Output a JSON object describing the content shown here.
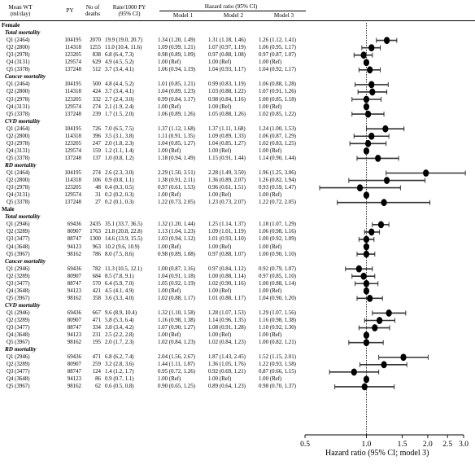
{
  "header": {
    "col_wt": [
      "Mean WT",
      "(ml/day)"
    ],
    "col_py": "PY",
    "col_deaths": [
      "No of",
      "deaths"
    ],
    "col_rate": [
      "Rate/1000 PY",
      "(95% CI)"
    ],
    "col_hr": "Hazard ratio (95% CI)",
    "col_m1": "Model 1",
    "col_m2": "Model 2",
    "col_m3": "Model 3"
  },
  "sections": [
    {
      "label": "Female",
      "groups": [
        {
          "label": "Total mortality",
          "rows": [
            {
              "q": "Q1 (2464)",
              "py": "104195",
              "d": "2070",
              "rate": "19.9 (19.0, 20.7)",
              "m1": "1.34 (1.20, 1.49)",
              "m2": "1.31 (1.18, 1.46)",
              "m3": "1.26 (1.12, 1.41)",
              "hr": 1.26,
              "lo": 1.12,
              "hi": 1.41
            },
            {
              "q": "Q2 (2800)",
              "py": "114318",
              "d": "1255",
              "rate": "11.0 (10.4, 11.6)",
              "m1": "1.09 (0.99, 1.21)",
              "m2": "1.07 (0.97, 1.19)",
              "m3": "1.06 (0.95, 1.17)",
              "hr": 1.06,
              "lo": 0.95,
              "hi": 1.17
            },
            {
              "q": "Q3 (2978)",
              "py": "123205",
              "d": "838",
              "rate": "6.8 (6.4, 7.3)",
              "m1": "0.98 (0.89, 1.09)",
              "m2": "0.97 (0.88, 1.08)",
              "m3": "0.97 (0.87, 1.07)",
              "hr": 0.97,
              "lo": 0.87,
              "hi": 1.07
            },
            {
              "q": "Q4 (3131)",
              "py": "129574",
              "d": "629",
              "rate": "4.9 (4.5, 5.2)",
              "m1": "1.00 (Ref)",
              "m2": "1.00 (Ref)",
              "m3": "1.00 (Ref)",
              "hr": 1.0,
              "lo": 1.0,
              "hi": 1.0
            },
            {
              "q": "Q5 (3378)",
              "py": "137248",
              "d": "512",
              "rate": "3.7 (3.4, 4.1)",
              "m1": "1.06 (0.94, 1.19)",
              "m2": "1.04 (0.93, 1.17)",
              "m3": "1.04 (0.92, 1.17)",
              "hr": 1.04,
              "lo": 0.92,
              "hi": 1.17
            }
          ]
        },
        {
          "label": "Cancer mortality",
          "rows": [
            {
              "q": "Q1 (2464)",
              "py": "104195",
              "d": "500",
              "rate": "4.8 (4.4, 5.2)",
              "m1": "1.01 (0.85, 1.21)",
              "m2": "0.99 (0.83, 1.19)",
              "m3": "1.06 (0.88, 1.28)",
              "hr": 1.06,
              "lo": 0.88,
              "hi": 1.28
            },
            {
              "q": "Q2 (2800)",
              "py": "114318",
              "d": "424",
              "rate": "3.7 (3.4, 4.1)",
              "m1": "1.04 (0.89, 1.23)",
              "m2": "1.03 (0.88, 1.22)",
              "m3": "1.07 (0.91, 1.26)",
              "hr": 1.07,
              "lo": 0.91,
              "hi": 1.26
            },
            {
              "q": "Q3 (2978)",
              "py": "123205",
              "d": "332",
              "rate": "2.7 (2.4, 3.0)",
              "m1": "0.99 (0.84, 1.17)",
              "m2": "0.98 (0.84, 1.16)",
              "m3": "1.00 (0.85, 1.18)",
              "hr": 1.0,
              "lo": 0.85,
              "hi": 1.18
            },
            {
              "q": "Q4 (3131)",
              "py": "129574",
              "d": "274",
              "rate": "2.1 (1.9, 2.4)",
              "m1": "1.00 (Ref)",
              "m2": "1.00 (Ref)",
              "m3": "1.00 (Ref)",
              "hr": 1.0,
              "lo": 1.0,
              "hi": 1.0
            },
            {
              "q": "Q5 (3378)",
              "py": "137248",
              "d": "239",
              "rate": "1.7 (1.5, 2.0)",
              "m1": "1.06 (0.89, 1.26)",
              "m2": "1.05 (0.88, 1.26)",
              "m3": "1.02 (0.85, 1.22)",
              "hr": 1.02,
              "lo": 0.85,
              "hi": 1.22
            }
          ]
        },
        {
          "label": "CVD mortality",
          "rows": [
            {
              "q": "Q1 (2464)",
              "py": "104195",
              "d": "726",
              "rate": "7.0 (6.5, 7.5)",
              "m1": "1.37 (1.12, 1.68)",
              "m2": "1.37 (1.11, 1.68)",
              "m3": "1.24 (1.00, 1.53)",
              "hr": 1.24,
              "lo": 1.0,
              "hi": 1.53
            },
            {
              "q": "Q2 (2800)",
              "py": "114318",
              "d": "396",
              "rate": "3.5 (3.1, 3.8)",
              "m1": "1.11 (0.91, 1.35)",
              "m2": "1.09 (0.89, 1.33)",
              "m3": "1.06 (0.87, 1.29)",
              "hr": 1.06,
              "lo": 0.87,
              "hi": 1.29
            },
            {
              "q": "Q3 (2978)",
              "py": "123205",
              "d": "247",
              "rate": "2.0 (1.8, 2.3)",
              "m1": "1.04 (0.85, 1.27)",
              "m2": "1.04 (0.85, 1.27)",
              "m3": "1.02 (0.83, 1.25)",
              "hr": 1.02,
              "lo": 0.83,
              "hi": 1.25
            },
            {
              "q": "Q4 (3131)",
              "py": "129574",
              "d": "159",
              "rate": "1.2 (1.1, 1.4)",
              "m1": "1.00 (Ref)",
              "m2": "1.00 (Ref)",
              "m3": "1.00 (Ref)",
              "hr": 1.0,
              "lo": 1.0,
              "hi": 1.0
            },
            {
              "q": "Q5 (3378)",
              "py": "137248",
              "d": "137",
              "rate": "1.0 (0.8, 1.2)",
              "m1": "1.18 (0.94, 1.49)",
              "m2": "1.15 (0.91, 1.44)",
              "m3": "1.14 (0.90, 1.44)",
              "hr": 1.14,
              "lo": 0.9,
              "hi": 1.44
            }
          ]
        },
        {
          "label": "RD mortality",
          "rows": [
            {
              "q": "Q1 (2464)",
              "py": "104195",
              "d": "274",
              "rate": "2.6 (2.3, 3.0)",
              "m1": "2.29 (1.50, 3.51)",
              "m2": "2.28 (1.49, 3.50)",
              "m3": "1.96 (1.25, 3.06)",
              "hr": 1.96,
              "lo": 1.25,
              "hi": 3.06
            },
            {
              "q": "Q2 (2800)",
              "py": "114318",
              "d": "106",
              "rate": "0.9 (0.8, 1.1)",
              "m1": "1.38 (0.91, 2.11)",
              "m2": "1.36 (0.89, 2.07)",
              "m3": "1.26 (0.82, 1.94)",
              "hr": 1.26,
              "lo": 0.82,
              "hi": 1.94
            },
            {
              "q": "Q3 (2978)",
              "py": "123205",
              "d": "48",
              "rate": "0.4 (0.3, 0.5)",
              "m1": "0.97 (0.61, 1.53)",
              "m2": "0.96 (0.61, 1.51)",
              "m3": "0.93 (0.59, 1.47)",
              "hr": 0.93,
              "lo": 0.59,
              "hi": 1.47
            },
            {
              "q": "Q4 (3131)",
              "py": "129574",
              "d": "31",
              "rate": "0.2 (0.2, 0.3)",
              "m1": "1.00 (Ref)",
              "m2": "1.00 (Ref)",
              "m3": "1.00 (Ref)",
              "hr": 1.0,
              "lo": 1.0,
              "hi": 1.0
            },
            {
              "q": "Q5 (3378)",
              "py": "137248",
              "d": "27",
              "rate": "0.2 (0.1, 0.3)",
              "m1": "1.22 (0.73, 2.05)",
              "m2": "1.23 (0.73, 2.07)",
              "m3": "1.22 (0.72, 2.05)",
              "hr": 1.22,
              "lo": 0.72,
              "hi": 2.05
            }
          ]
        }
      ]
    },
    {
      "label": "Male",
      "groups": [
        {
          "label": "Total mortality",
          "rows": [
            {
              "q": "Q1 (2946)",
              "py": "69436",
              "d": "2435",
              "rate": "35.1 (33.7, 36.5)",
              "m1": "1.32 (1.20, 1.44)",
              "m2": "1.25 (1.14, 1.37)",
              "m3": "1.18 (1.07, 1.29)",
              "hr": 1.18,
              "lo": 1.07,
              "hi": 1.29
            },
            {
              "q": "Q2 (3289)",
              "py": "80907",
              "d": "1763",
              "rate": "21.8 (20.8, 22.8)",
              "m1": "1.13 (1.04, 1.23)",
              "m2": "1.09 (1.01, 1.19)",
              "m3": "1.06 (0.98, 1.16)",
              "hr": 1.06,
              "lo": 0.98,
              "hi": 1.16
            },
            {
              "q": "Q3 (3477)",
              "py": "88747",
              "d": "1300",
              "rate": "14.6 (13.9, 15.5)",
              "m1": "1.03 (0.94, 1.12)",
              "m2": "1.01 (0.93, 1.10)",
              "m3": "1.00 (0.92, 1.09)",
              "hr": 1.0,
              "lo": 0.92,
              "hi": 1.09
            },
            {
              "q": "Q4 (3648)",
              "py": "94123",
              "d": "963",
              "rate": "10.2 (9.6, 10.9)",
              "m1": "1.00 (Ref)",
              "m2": "1.00 (Ref)",
              "m3": "1.00 (Ref)",
              "hr": 1.0,
              "lo": 1.0,
              "hi": 1.0
            },
            {
              "q": "Q5 (3967)",
              "py": "98162",
              "d": "786",
              "rate": "8.0 (7.5, 8.6)",
              "m1": "0.98 (0.89, 1.08)",
              "m2": "0.97 (0.88, 1.07)",
              "m3": "1.00 (0.90, 1.10)",
              "hr": 1.0,
              "lo": 0.9,
              "hi": 1.1
            }
          ]
        },
        {
          "label": "Cancer mortality",
          "rows": [
            {
              "q": "Q1 (2946)",
              "py": "69436",
              "d": "782",
              "rate": "11.3 (10.5, 12.1)",
              "m1": "1.00 (0.87, 1.16)",
              "m2": "0.97 (0.84, 1.12)",
              "m3": "0.92 (0.79, 1.07)",
              "hr": 0.92,
              "lo": 0.79,
              "hi": 1.07
            },
            {
              "q": "Q2 (3289)",
              "py": "80907",
              "d": "684",
              "rate": "8.5 (7.8, 9.1)",
              "m1": "1.04 (0.91, 1.18)",
              "m2": "1.00 (0.88, 1.14)",
              "m3": "0.97 (0.85, 1.10)",
              "hr": 0.97,
              "lo": 0.85,
              "hi": 1.1
            },
            {
              "q": "Q3 (3477)",
              "py": "88747",
              "d": "570",
              "rate": "6.4 (5.9, 7.0)",
              "m1": "1.05 (0.92, 1.19)",
              "m2": "1.02 (0.90, 1.16)",
              "m3": "1.00 (0.88, 1.14)",
              "hr": 1.0,
              "lo": 0.88,
              "hi": 1.14
            },
            {
              "q": "Q4 (3648)",
              "py": "94123",
              "d": "421",
              "rate": "4.5 (4.1, 4.9)",
              "m1": "1.00 (Ref)",
              "m2": "1.00 (Ref)",
              "m3": "1.00 (Ref)",
              "hr": 1.0,
              "lo": 1.0,
              "hi": 1.0
            },
            {
              "q": "Q5 (3967)",
              "py": "98162",
              "d": "358",
              "rate": "3.6 (3.3, 4.0)",
              "m1": "1.02 (0.88, 1.17)",
              "m2": "1.01 (0.88, 1.17)",
              "m3": "1.04 (0.90, 1.20)",
              "hr": 1.04,
              "lo": 0.9,
              "hi": 1.2
            }
          ]
        },
        {
          "label": "CVD mortality",
          "rows": [
            {
              "q": "Q1 (2946)",
              "py": "69436",
              "d": "667",
              "rate": "9.6 (8.9, 10.4)",
              "m1": "1.32 (1.10, 1.58)",
              "m2": "1.28 (1.07, 1.53)",
              "m3": "1.29 (1.07, 1.56)",
              "hr": 1.29,
              "lo": 1.07,
              "hi": 1.56
            },
            {
              "q": "Q2 (3289)",
              "py": "80907",
              "d": "471",
              "rate": "5.8 (5.3, 6.4)",
              "m1": "1.16 (0.98, 1.38)",
              "m2": "1.14 (0.96, 1.35)",
              "m3": "1.16 (0.98, 1.38)",
              "hr": 1.16,
              "lo": 0.98,
              "hi": 1.38
            },
            {
              "q": "Q3 (3477)",
              "py": "88747",
              "d": "334",
              "rate": "3.8 (3.4, 4.2)",
              "m1": "1.07 (0.90, 1.27)",
              "m2": "1.08 (0.91, 1.28)",
              "m3": "1.10 (0.92, 1.30)",
              "hr": 1.1,
              "lo": 0.92,
              "hi": 1.3
            },
            {
              "q": "Q4 (3648)",
              "py": "94123",
              "d": "231",
              "rate": "2.5 (2.2, 2.8)",
              "m1": "1.00 (Ref)",
              "m2": "1.00 (Ref)",
              "m3": "1.00 (Ref)",
              "hr": 1.0,
              "lo": 1.0,
              "hi": 1.0
            },
            {
              "q": "Q5 (3967)",
              "py": "98162",
              "d": "195",
              "rate": "2.0 (1.7, 2.3)",
              "m1": "1.02 (0.84, 1.23)",
              "m2": "1.02 (0.84, 1.23)",
              "m3": "1.00 (0.82, 1.21)",
              "hr": 1.0,
              "lo": 0.82,
              "hi": 1.21
            }
          ]
        },
        {
          "label": "RD mortality",
          "rows": [
            {
              "q": "Q1 (2946)",
              "py": "69436",
              "d": "471",
              "rate": "6.8 (6.2, 7.4)",
              "m1": "2.04 (1.56, 2.67)",
              "m2": "1.87 (1.43, 2.45)",
              "m3": "1.52 (1.15, 2.01)",
              "hr": 1.52,
              "lo": 1.15,
              "hi": 2.01
            },
            {
              "q": "Q2 (3289)",
              "py": "80907",
              "d": "259",
              "rate": "3.2 (2.8, 3.6)",
              "m1": "1.44 (1.11, 1.87)",
              "m2": "1.36 (1.05, 1.76)",
              "m3": "1.22 (0.93, 1.58)",
              "hr": 1.22,
              "lo": 0.93,
              "hi": 1.58
            },
            {
              "q": "Q3 (3477)",
              "py": "88747",
              "d": "124",
              "rate": "1.4 (1.2, 1.7)",
              "m1": "0.95 (0.72, 1.26)",
              "m2": "0.92 (0.69, 1.21)",
              "m3": "0.87 (0.66, 1.15)",
              "hr": 0.87,
              "lo": 0.66,
              "hi": 1.15
            },
            {
              "q": "Q4 (3648)",
              "py": "94123",
              "d": "86",
              "rate": "0.9 (0.7, 1.1)",
              "m1": "1.00 (Ref)",
              "m2": "1.00 (Ref)",
              "m3": "1.00 (Ref)",
              "hr": 1.0,
              "lo": 1.0,
              "hi": 1.0
            },
            {
              "q": "Q5 (3967)",
              "py": "98162",
              "d": "62",
              "rate": "0.6 (0.5, 0.8)",
              "m1": "0.90 (0.65, 1.25)",
              "m2": "0.89 (0.64, 1.23)",
              "m3": "0.98 (0.70, 1.37)",
              "hr": 0.98,
              "lo": 0.7,
              "hi": 1.37
            }
          ]
        }
      ]
    }
  ],
  "axis": {
    "ticks": [
      "0.5",
      "1.0",
      "1.5",
      "2.0",
      "2.5",
      "3.0"
    ],
    "tick_values": [
      0.5,
      1.0,
      1.5,
      2.0,
      2.5,
      3.0
    ],
    "label": "Hazard ratio (95% CI; model 3)",
    "scale": "log",
    "range": [
      0.5,
      3.0
    ],
    "reference_line": 1.0
  }
}
